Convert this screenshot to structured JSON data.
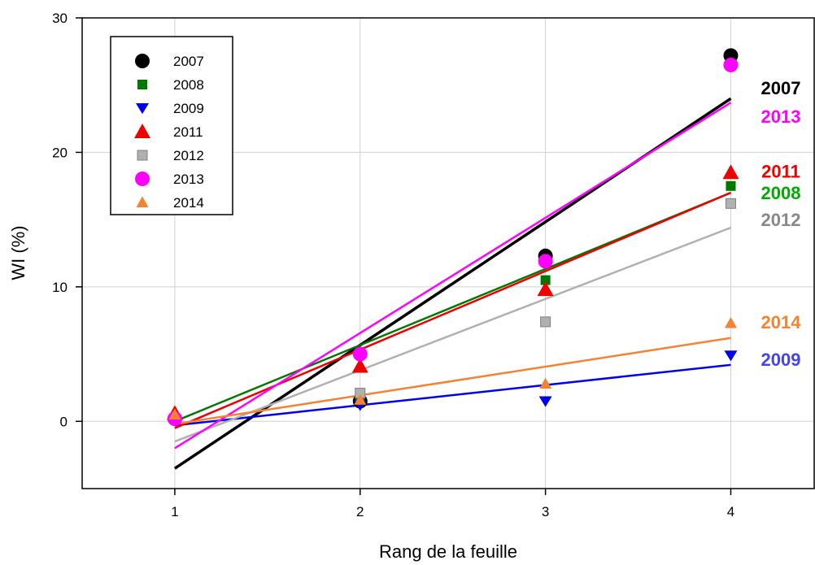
{
  "chart_data": {
    "type": "scatter",
    "title": "",
    "xlabel": "Rang de la feuille",
    "ylabel": "WI (%)",
    "xlim": [
      0.5,
      4.45
    ],
    "ylim": [
      -5,
      30
    ],
    "xticks": [
      1,
      2,
      3,
      4
    ],
    "yticks": [
      0,
      10,
      20,
      30
    ],
    "grid": true,
    "legend_position": "top-left",
    "series": [
      {
        "name": "2007",
        "color": "#000000",
        "label_color": "#000000",
        "marker": "circle",
        "x": [
          1,
          2,
          3,
          4
        ],
        "y": [
          0.2,
          1.5,
          12.3,
          27.2
        ],
        "fit": [
          [
            1,
            -3.5
          ],
          [
            4,
            24.0
          ]
        ]
      },
      {
        "name": "2008",
        "color": "#007800",
        "label_color": "#00aa00",
        "marker": "square",
        "x": [
          1,
          2,
          3,
          4
        ],
        "y": [
          0.2,
          1.8,
          10.5,
          17.5
        ],
        "fit": [
          [
            1,
            0.0
          ],
          [
            4,
            17.0
          ]
        ]
      },
      {
        "name": "2009",
        "color": "#0000ee",
        "label_color": "#4444ee",
        "marker": "triangle-down",
        "x": [
          1,
          2,
          3,
          4
        ],
        "y": [
          0.1,
          1.2,
          1.5,
          4.9
        ],
        "fit": [
          [
            1,
            -0.3
          ],
          [
            4,
            4.2
          ]
        ]
      },
      {
        "name": "2011",
        "color": "#ee0000",
        "label_color": "#ee0000",
        "marker": "triangle-up",
        "x": [
          1,
          2,
          3,
          4
        ],
        "y": [
          0.6,
          4.1,
          9.8,
          18.5
        ],
        "fit": [
          [
            1,
            -0.5
          ],
          [
            4,
            17.0
          ]
        ]
      },
      {
        "name": "2012",
        "color": "#b0b0b0",
        "label_color": "#888888",
        "marker": "square",
        "x": [
          1,
          2,
          3,
          4
        ],
        "y": [
          0.2,
          2.1,
          7.4,
          16.2
        ],
        "fit": [
          [
            1,
            -1.5
          ],
          [
            4,
            14.4
          ]
        ]
      },
      {
        "name": "2013",
        "color": "#ff00ff",
        "label_color": "#ff00ff",
        "marker": "circle",
        "x": [
          1,
          2,
          3,
          4
        ],
        "y": [
          0.2,
          5.0,
          11.9,
          26.5
        ],
        "fit": [
          [
            1,
            -2.0
          ],
          [
            4,
            23.7
          ]
        ]
      },
      {
        "name": "2014",
        "color": "#f58231",
        "label_color": "#f58231",
        "marker": "triangle-up-small",
        "x": [
          1,
          2,
          3,
          4
        ],
        "y": [
          0.5,
          1.6,
          2.8,
          7.3
        ],
        "fit": [
          [
            1,
            -0.2
          ],
          [
            4,
            6.2
          ]
        ]
      }
    ],
    "end_labels": [
      {
        "text": "2007",
        "series": "2007",
        "x": 4.27,
        "y": 24.8
      },
      {
        "text": "2013",
        "series": "2013",
        "x": 4.27,
        "y": 22.7
      },
      {
        "text": "2011",
        "series": "2011",
        "x": 4.27,
        "y": 18.6
      },
      {
        "text": "2008",
        "series": "2008",
        "x": 4.27,
        "y": 17.0
      },
      {
        "text": "2012",
        "series": "2012",
        "x": 4.27,
        "y": 15.0
      },
      {
        "text": "2014",
        "series": "2014",
        "x": 4.27,
        "y": 7.4
      },
      {
        "text": "2009",
        "series": "2009",
        "x": 4.27,
        "y": 4.6
      }
    ]
  }
}
